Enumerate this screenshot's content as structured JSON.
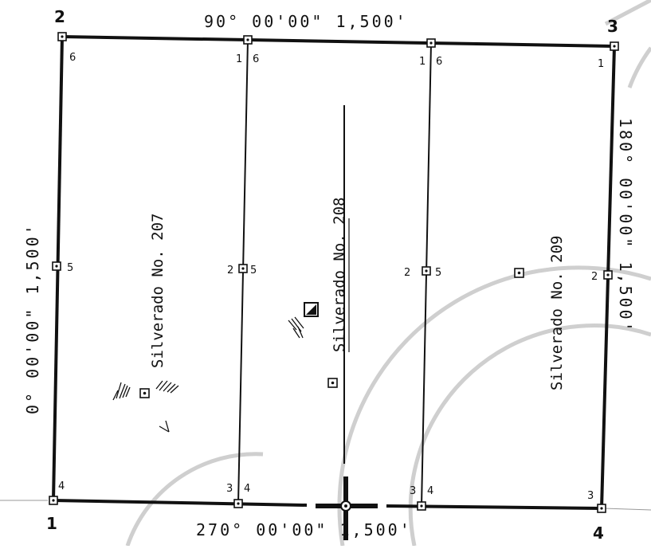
{
  "plat": {
    "corner_numbers": {
      "top_left": "2",
      "top_right": "3",
      "bottom_left": "1",
      "bottom_right": "4"
    },
    "bearings": {
      "top": "90° 00'00\"  1,500'",
      "bottom": "270° 00'00\" 1,500'",
      "left": "0° 00'00\"  1,500'",
      "right": "180° 00'00\" 1,500'"
    },
    "claims": [
      {
        "name": "Silverado No. 207"
      },
      {
        "name": "Silverado No. 208"
      },
      {
        "name": "Silverado No. 209"
      }
    ],
    "post_numbers": {
      "p2": "6",
      "pt2": "1",
      "pt2b": "6",
      "pt3": "1",
      "pt3b": "6",
      "p3": "1",
      "pl": "5",
      "pm1a": "2",
      "pm1b": "5",
      "pm2a": "2",
      "pm2b": "5",
      "pr": "2",
      "p1": "4",
      "pb1a": "3",
      "pb1b": "4",
      "pb2a": "3",
      "pb2b": "4",
      "p4": "3"
    },
    "colors": {
      "ink": "#111111",
      "arc": "#cfcfcf"
    }
  }
}
